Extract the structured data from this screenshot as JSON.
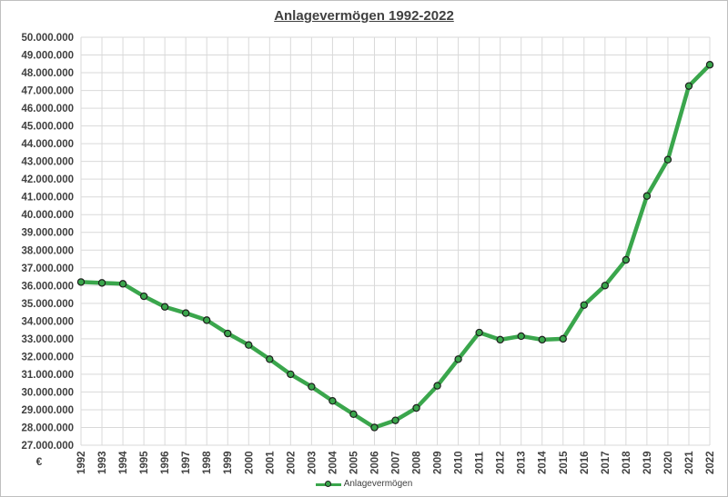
{
  "chart_data": {
    "type": "line",
    "title": "Anlagevermögen 1992-2022",
    "ylabel": "€",
    "xlabel": "",
    "ylim": [
      27000000,
      50000000
    ],
    "y_ticks": [
      "27.000.000",
      "28.000.000",
      "29.000.000",
      "30.000.000",
      "31.000.000",
      "32.000.000",
      "33.000.000",
      "34.000.000",
      "35.000.000",
      "36.000.000",
      "37.000.000",
      "38.000.000",
      "39.000.000",
      "40.000.000",
      "41.000.000",
      "42.000.000",
      "43.000.000",
      "44.000.000",
      "45.000.000",
      "46.000.000",
      "47.000.000",
      "48.000.000",
      "49.000.000",
      "50.000.000"
    ],
    "categories": [
      "1992",
      "1993",
      "1994",
      "1995",
      "1996",
      "1997",
      "1998",
      "1999",
      "2000",
      "2001",
      "2002",
      "2003",
      "2004",
      "2005",
      "2006",
      "2007",
      "2008",
      "2009",
      "2010",
      "2011",
      "2012",
      "2013",
      "2014",
      "2015",
      "2016",
      "2017",
      "2018",
      "2019",
      "2020",
      "2021",
      "2022"
    ],
    "series": [
      {
        "name": "Anlagevermögen",
        "values": [
          36200000,
          36150000,
          36100000,
          35400000,
          34800000,
          34450000,
          34050000,
          33300000,
          32650000,
          31850000,
          31000000,
          30300000,
          29500000,
          28750000,
          28000000,
          28400000,
          29100000,
          30350000,
          31850000,
          33350000,
          32950000,
          33150000,
          32950000,
          33000000,
          34900000,
          36000000,
          37450000,
          41050000,
          43100000,
          47250000,
          48450000
        ]
      }
    ],
    "grid": true,
    "legend_position": "bottom",
    "colors": {
      "line": "#3aa64c",
      "marker_fill": "#3aa64c",
      "marker_stroke": "#1e1e1e",
      "grid": "#d9d9d9"
    }
  }
}
